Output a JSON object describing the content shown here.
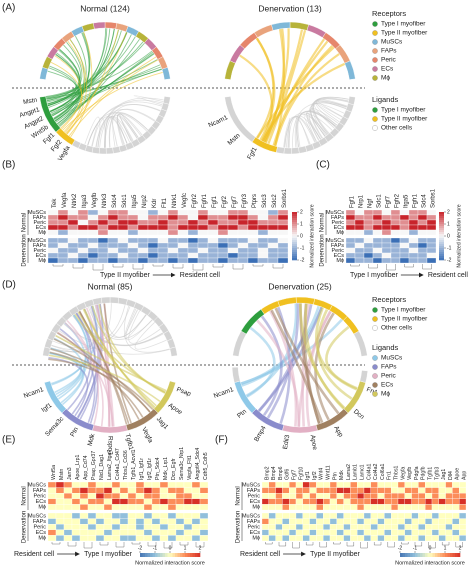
{
  "panel_a": {
    "label": "(A)",
    "charts": [
      {
        "title": "Normal (124)",
        "labels": [
          {
            "text": "Mstn",
            "group": 0
          },
          {
            "text": "Angpt1",
            "group": 0
          },
          {
            "text": "Angpt2",
            "group": 0
          },
          {
            "text": "Wnt5b",
            "group": 0
          },
          {
            "text": "Fgf1",
            "group": 1
          },
          {
            "text": "Fgf2",
            "group": 1
          },
          {
            "text": "Vegfa",
            "group": 1
          }
        ]
      },
      {
        "title": "Denervation (13)",
        "labels": [
          {
            "text": "Ncam1",
            "group": 1
          },
          {
            "text": "Mstn",
            "group": 1
          },
          {
            "text": "Fgf1",
            "group": 1
          }
        ]
      }
    ],
    "legend": {
      "receptors_title": "Receptors",
      "receptors": [
        {
          "name": "Type I myofiber",
          "color": "#2e9e3e"
        },
        {
          "name": "Type II myofiber",
          "color": "#f0c020"
        },
        {
          "name": "MuSCs",
          "color": "#7fb8d8"
        },
        {
          "name": "FAPs",
          "color": "#e9a37c"
        },
        {
          "name": "Peric",
          "color": "#e6866b"
        },
        {
          "name": "ECs",
          "color": "#c97aa0"
        },
        {
          "name": "Mϕ",
          "color": "#b7b33a"
        }
      ],
      "ligands_title": "Ligands",
      "ligands": [
        {
          "name": "Type I myofiber",
          "color": "#2e9e3e"
        },
        {
          "name": "Type II myofiber",
          "color": "#f0c020"
        },
        {
          "name": "Other cells",
          "color": "#ffffff"
        }
      ]
    }
  },
  "panel_b": {
    "label": "(B)",
    "columns": [
      "Tek",
      "Vegfa",
      "Ntrk2",
      "Itga3",
      "Vegfb",
      "Ntrk3",
      "Sdc4",
      "Sdc1",
      "Itga5",
      "Nrp2",
      "Kdr",
      "Flt1",
      "Ntrk1",
      "Vegfc",
      "Fgfr2",
      "Fgfr1",
      "Fgf1",
      "Fgf2",
      "Fgf7",
      "Fgfr3",
      "Ptprs",
      "Sdc3",
      "Sdc2",
      "Sorbs1"
    ],
    "highlight_columns": [
      16,
      17,
      18
    ],
    "highlight_color": "#d63a2a",
    "row_groups": [
      "Normal",
      "Denervation"
    ],
    "rows": [
      "MuSCs",
      "FAPs",
      "Peric",
      "ECs",
      "Mϕ"
    ],
    "values": [
      [
        0,
        1,
        0,
        1,
        -1,
        0,
        1,
        1,
        0,
        0,
        -1,
        0,
        1,
        0,
        0,
        1,
        0,
        0,
        1,
        1,
        0,
        0,
        -1,
        1
      ],
      [
        1,
        2,
        1,
        1,
        0,
        1,
        2,
        1,
        1,
        0,
        1,
        1,
        2,
        1,
        0,
        2,
        1,
        1,
        2,
        2,
        1,
        0,
        1,
        2
      ],
      [
        1,
        1,
        2,
        0,
        1,
        2,
        1,
        2,
        2,
        1,
        1,
        2,
        1,
        1,
        2,
        1,
        2,
        1,
        1,
        2,
        2,
        1,
        1,
        1
      ],
      [
        2,
        2,
        1,
        2,
        2,
        1,
        2,
        2,
        1,
        2,
        2,
        2,
        1,
        2,
        2,
        2,
        1,
        2,
        2,
        1,
        2,
        2,
        2,
        2
      ],
      [
        0,
        -1,
        0,
        0,
        0,
        1,
        0,
        0,
        -1,
        0,
        0,
        0,
        1,
        0,
        -1,
        0,
        0,
        1,
        0,
        0,
        0,
        -1,
        0,
        0
      ],
      [
        -1,
        -1,
        0,
        -1,
        -1,
        -2,
        -1,
        0,
        -1,
        -1,
        -1,
        0,
        -1,
        -1,
        -2,
        -1,
        0,
        -1,
        -1,
        -1,
        0,
        -1,
        -1,
        0
      ],
      [
        -1,
        0,
        -1,
        -1,
        0,
        -1,
        -1,
        -1,
        0,
        -1,
        -2,
        -1,
        -1,
        0,
        -1,
        -1,
        -1,
        -2,
        -1,
        0,
        -1,
        -1,
        0,
        -1
      ],
      [
        0,
        -1,
        -1,
        0,
        -1,
        -1,
        0,
        -1,
        -1,
        0,
        -1,
        -1,
        0,
        -1,
        -1,
        0,
        -1,
        -1,
        0,
        -1,
        -1,
        0,
        -1,
        -1
      ],
      [
        -1,
        -1,
        0,
        -1,
        -2,
        -1,
        -1,
        0,
        -1,
        -1,
        -2,
        -1,
        -1,
        -1,
        0,
        -1,
        -1,
        -1,
        -2,
        -1,
        -1,
        0,
        -1,
        -1
      ],
      [
        -2,
        -1,
        -1,
        -2,
        -1,
        -1,
        -2,
        -1,
        -1,
        -2,
        -1,
        -1,
        -2,
        -1,
        -2,
        -1,
        -1,
        -2,
        -1,
        -1,
        -2,
        -1,
        -1,
        -2
      ]
    ],
    "colorbar": {
      "lim": [
        -2,
        2
      ],
      "ticks": [
        -2,
        -1,
        0,
        1,
        2
      ],
      "label": "Normalized interaction score",
      "palette": [
        "#3b6fb6",
        "#f7f7f7",
        "#c8242b"
      ]
    },
    "from": "Type II myofiber",
    "to": "Resident cell"
  },
  "panel_c": {
    "label": "(C)",
    "columns": [
      "Fgf1",
      "Nrp1",
      "Ngf",
      "Sdc1",
      "Fgf7",
      "Fgfr2",
      "Itga5",
      "Fgfr1",
      "Sdc4",
      "Sorbs1"
    ],
    "highlight_columns": [
      4
    ],
    "highlight_color": "#d63a2a",
    "row_groups": [
      "Normal",
      "Denervation"
    ],
    "rows": [
      "MuSCs",
      "FAPs",
      "Peric",
      "ECs",
      "Mϕ"
    ],
    "values": [
      [
        1,
        0,
        1,
        1,
        0,
        1,
        0,
        1,
        1,
        0
      ],
      [
        2,
        1,
        1,
        2,
        1,
        1,
        2,
        1,
        2,
        1
      ],
      [
        1,
        2,
        1,
        1,
        2,
        1,
        1,
        2,
        1,
        2
      ],
      [
        2,
        2,
        1,
        2,
        2,
        2,
        1,
        2,
        2,
        2
      ],
      [
        0,
        0,
        -1,
        0,
        1,
        0,
        0,
        -1,
        0,
        0
      ],
      [
        -1,
        -1,
        0,
        -1,
        -1,
        -2,
        -1,
        0,
        -1,
        -1
      ],
      [
        -1,
        0,
        -1,
        -1,
        -1,
        -1,
        0,
        -1,
        -2,
        -1
      ],
      [
        0,
        -1,
        -1,
        0,
        -1,
        -1,
        -1,
        0,
        -1,
        -1
      ],
      [
        -1,
        -1,
        -2,
        -1,
        0,
        -1,
        -1,
        -1,
        -1,
        0
      ],
      [
        -2,
        -1,
        -1,
        -2,
        -1,
        -1,
        -2,
        -1,
        -1,
        -2
      ]
    ],
    "colorbar": {
      "lim": [
        -2,
        2
      ],
      "ticks": [
        -2,
        -1,
        0,
        1,
        2
      ],
      "label": "Normalized interaction score",
      "palette": [
        "#3b6fb6",
        "#f7f7f7",
        "#c8242b"
      ]
    },
    "from": "Type I myofiber",
    "to": "Resident cell"
  },
  "panel_d": {
    "label": "(D)",
    "charts": [
      {
        "title": "Normal (85)",
        "labels": [
          {
            "text": "Ncam1",
            "group": 0
          },
          {
            "text": "Igf1",
            "group": 1
          },
          {
            "text": "Sema3c",
            "group": 1
          },
          {
            "text": "Ptn",
            "group": 1
          },
          {
            "text": "Mdk",
            "group": 2
          },
          {
            "text": "Rspo3",
            "group": 2
          },
          {
            "text": "Tgfb1",
            "group": 3
          },
          {
            "text": "Vegfa",
            "group": 3
          },
          {
            "text": "Jag1",
            "group": 3
          },
          {
            "text": "Apoe",
            "group": 4
          },
          {
            "text": "Psap",
            "group": 4
          }
        ]
      },
      {
        "title": "Denervation (25)",
        "labels": [
          {
            "text": "Ncam1",
            "group": 0
          },
          {
            "text": "Ptn",
            "group": 1
          },
          {
            "text": "Bmp4",
            "group": 1
          },
          {
            "text": "Edil3",
            "group": 2
          },
          {
            "text": "Apoe",
            "group": 3
          },
          {
            "text": "App",
            "group": 3
          },
          {
            "text": "Dcn",
            "group": 4
          },
          {
            "text": "Fn1",
            "group": 4
          }
        ]
      }
    ],
    "legend": {
      "receptors_title": "Receptors",
      "receptors": [
        {
          "name": "Type I myofiber",
          "color": "#2e9e3e"
        },
        {
          "name": "Type II myofiber",
          "color": "#f0c020"
        },
        {
          "name": "Other cells",
          "color": "#ffffff"
        }
      ],
      "ligands_title": "Ligands",
      "ligands": [
        {
          "name": "MuSCs",
          "color": "#8ec9e8"
        },
        {
          "name": "FAPs",
          "color": "#8a8ccc"
        },
        {
          "name": "Peric",
          "color": "#e2b0c4"
        },
        {
          "name": "ECs",
          "color": "#a08060"
        },
        {
          "name": "Mϕ",
          "color": "#d2c85c"
        }
      ]
    }
  },
  "panel_e": {
    "label": "(E)",
    "columns": [
      "Wnt5a",
      "Mstn",
      "Jam3",
      "Apoe_Lrp1",
      "App_Cd74",
      "Psap_Gpr37",
      "Nid1_Dag1",
      "Lama2_Itga7",
      "Col4a1_Cd47",
      "Thbs1_Cd36",
      "Tgfb1_Acvrl1",
      "Igf1_Igf1r",
      "Igf2_Igf1r",
      "Ptn_Sdc4",
      "Mdk_Lrp1",
      "Dcn_Egfr",
      "Sema3c_Nrp1",
      "Vegfa_Flt1",
      "Angptl4_Sdc4",
      "Cdh5_Cdh5"
    ],
    "highlight_columns": [
      0,
      1,
      2
    ],
    "highlight_color": "#d63a2a",
    "row_groups": [
      "Normal",
      "Denervation"
    ],
    "rows": [
      "MuSCs",
      "FAPs",
      "Peric",
      "ECs",
      "Mϕ"
    ],
    "values": [
      [
        1,
        2,
        1,
        0,
        0,
        1,
        0,
        0,
        1,
        0,
        0,
        1,
        0,
        0,
        1,
        0,
        0,
        0,
        1,
        0
      ],
      [
        0,
        1,
        0,
        1,
        2,
        1,
        1,
        2,
        0,
        1,
        0,
        1,
        2,
        1,
        0,
        1,
        1,
        0,
        0,
        1
      ],
      [
        0,
        0,
        1,
        0,
        1,
        0,
        2,
        1,
        1,
        0,
        1,
        0,
        1,
        1,
        0,
        0,
        1,
        1,
        0,
        0
      ],
      [
        1,
        0,
        0,
        1,
        0,
        1,
        1,
        0,
        2,
        2,
        1,
        1,
        0,
        1,
        2,
        1,
        1,
        2,
        2,
        1
      ],
      [
        0,
        0,
        0,
        0,
        1,
        0,
        0,
        1,
        0,
        0,
        0,
        0,
        1,
        0,
        0,
        1,
        0,
        0,
        0,
        0
      ],
      [
        0,
        0,
        0,
        -1,
        0,
        -1,
        0,
        0,
        -1,
        -1,
        0,
        0,
        -1,
        0,
        0,
        -1,
        0,
        0,
        0,
        -1
      ],
      [
        -1,
        0,
        0,
        0,
        -1,
        0,
        -1,
        0,
        0,
        -1,
        0,
        -1,
        0,
        -1,
        0,
        0,
        -1,
        0,
        -1,
        0
      ],
      [
        0,
        -1,
        0,
        0,
        0,
        -1,
        0,
        0,
        -1,
        0,
        0,
        -1,
        0,
        0,
        -1,
        0,
        0,
        -1,
        0,
        0
      ],
      [
        1,
        0,
        -1,
        0,
        0,
        0,
        0,
        -1,
        0,
        0,
        0,
        0,
        -1,
        0,
        0,
        0,
        -1,
        0,
        0,
        -1
      ],
      [
        0,
        -1,
        0,
        -1,
        0,
        0,
        -1,
        0,
        0,
        -1,
        -1,
        0,
        0,
        -1,
        0,
        -1,
        0,
        0,
        -1,
        0
      ]
    ],
    "colorbar": {
      "lim": [
        -2,
        2
      ],
      "ticks": [
        -2,
        -1,
        0,
        1,
        2
      ],
      "label": "Normalized interaction score",
      "palette": [
        "#4575b4",
        "#91bfdb",
        "#ffffbf",
        "#fc8d59",
        "#d73027"
      ]
    },
    "from": "Resident cell",
    "to": "Type I myofiber"
  },
  "panel_f": {
    "label": "(F)",
    "columns": [
      "Bmp2",
      "Bmp4",
      "Bmp6",
      "Gdf6",
      "Fgf7",
      "Fgf10",
      "Igf1",
      "Igf2",
      "Wnt4",
      "Wnt11",
      "Ptn",
      "Mdk",
      "Lama2",
      "Lamb1",
      "Lamc1",
      "Col4a1",
      "Col4a2",
      "Col6a1",
      "Fn1",
      "Thbs1",
      "Vegfa",
      "Vegfb",
      "Pdgfa",
      "Pdgfb",
      "Tgfb1",
      "Tgfb3",
      "Jag1",
      "Dll4",
      "Apoe",
      "App"
    ],
    "highlight_columns": [
      0,
      8,
      9,
      13,
      14,
      15,
      16,
      17
    ],
    "highlight_color": "#d63a2a",
    "row_groups": [
      "Normal",
      "Denervation"
    ],
    "rows": [
      "MuSCs",
      "FAPs",
      "Peric",
      "ECs",
      "Mϕ"
    ],
    "values": [
      [
        0,
        1,
        0,
        0,
        1,
        0,
        2,
        1,
        0,
        0,
        1,
        0,
        0,
        1,
        0,
        0,
        1,
        0,
        0,
        0,
        1,
        0,
        0,
        1,
        0,
        0,
        0,
        1,
        0,
        0
      ],
      [
        1,
        1,
        2,
        1,
        0,
        1,
        1,
        0,
        1,
        1,
        1,
        2,
        2,
        1,
        1,
        2,
        1,
        1,
        1,
        0,
        0,
        1,
        1,
        0,
        1,
        1,
        0,
        0,
        1,
        0
      ],
      [
        0,
        0,
        1,
        0,
        0,
        1,
        0,
        1,
        0,
        0,
        1,
        0,
        1,
        1,
        2,
        1,
        1,
        0,
        1,
        1,
        1,
        0,
        1,
        1,
        0,
        1,
        0,
        1,
        1,
        1
      ],
      [
        2,
        1,
        1,
        2,
        1,
        0,
        1,
        1,
        2,
        1,
        0,
        1,
        0,
        1,
        1,
        1,
        2,
        2,
        1,
        1,
        2,
        2,
        1,
        1,
        2,
        1,
        2,
        1,
        1,
        2
      ],
      [
        0,
        0,
        0,
        1,
        0,
        0,
        0,
        0,
        1,
        0,
        0,
        0,
        0,
        0,
        1,
        0,
        0,
        0,
        0,
        1,
        0,
        0,
        0,
        0,
        1,
        0,
        0,
        0,
        0,
        1
      ],
      [
        0,
        -1,
        0,
        0,
        0,
        -1,
        0,
        0,
        -1,
        0,
        0,
        -1,
        0,
        0,
        0,
        -1,
        0,
        0,
        -1,
        0,
        0,
        0,
        -1,
        0,
        0,
        -1,
        0,
        0,
        0,
        -1
      ],
      [
        1,
        0,
        0,
        -1,
        0,
        0,
        0,
        -1,
        0,
        0,
        -1,
        0,
        0,
        0,
        -1,
        0,
        0,
        -1,
        0,
        0,
        0,
        -1,
        0,
        0,
        -1,
        0,
        0,
        0,
        -1,
        0
      ],
      [
        0,
        0,
        -1,
        0,
        0,
        -1,
        0,
        0,
        0,
        -1,
        0,
        0,
        -1,
        0,
        0,
        0,
        -1,
        0,
        0,
        0,
        -1,
        0,
        0,
        -1,
        0,
        0,
        0,
        -1,
        0,
        0
      ],
      [
        -1,
        0,
        0,
        0,
        -1,
        0,
        0,
        -1,
        0,
        0,
        0,
        -1,
        0,
        0,
        -1,
        0,
        0,
        0,
        -1,
        0,
        0,
        -1,
        0,
        0,
        0,
        -1,
        0,
        0,
        -1,
        0
      ],
      [
        0,
        -1,
        0,
        -1,
        0,
        0,
        -1,
        0,
        0,
        -1,
        0,
        0,
        -1,
        0,
        0,
        -1,
        0,
        -1,
        0,
        0,
        -1,
        0,
        0,
        -1,
        0,
        0,
        -1,
        0,
        0,
        -1
      ]
    ],
    "colorbar": {
      "lim": [
        -2,
        2
      ],
      "ticks": [
        -2,
        -1,
        0,
        1,
        2
      ],
      "label": "Normalized interaction score",
      "palette": [
        "#4575b4",
        "#91bfdb",
        "#ffffbf",
        "#fc8d59",
        "#d73027"
      ]
    },
    "from": "Resident cell",
    "to": "Type II myofiber"
  }
}
